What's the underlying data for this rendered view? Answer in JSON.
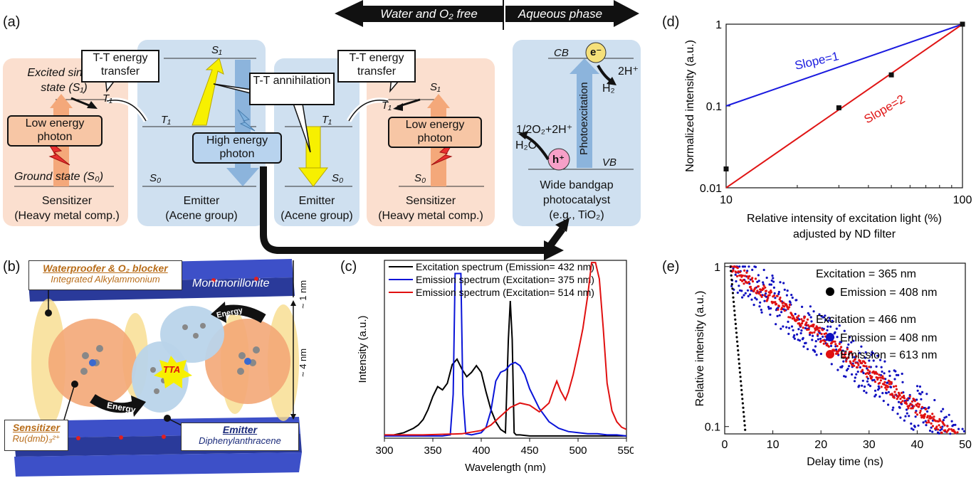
{
  "panels": {
    "a": "(a)",
    "b": "(b)",
    "c": "(c)",
    "d": "(d)",
    "e": "(e)"
  },
  "panel_a": {
    "arrow_left": "Water and O₂ free",
    "arrow_right": "Aqueous phase",
    "excited_singlet": "Excited singlet",
    "state_s1": "state (S₁)",
    "ground_state": "Ground state (S₀)",
    "low_energy_photon": "Low energy photon",
    "tt_energy_transfer": "T-T energy transfer",
    "tt_annihilation": "T-T annihilation",
    "high_energy_photon": "High energy photon",
    "sensitizer": "Sensitizer",
    "heavy_metal": "(Heavy metal comp.)",
    "emitter": "Emitter",
    "acene": "(Acene group)",
    "wide_bandgap": "Wide bandgap",
    "photocatalyst": "photocatalyst",
    "eg_tio2": "(e.g., TiO₂)",
    "s1": "S₁",
    "t1": "T₁",
    "s0": "S₀",
    "cb": "CB",
    "vb": "VB",
    "electron": "e⁻",
    "hole": "h⁺",
    "h2_plus": "2H⁺",
    "h2": "H₂",
    "o2_reaction": "1/2O₂+2H⁺",
    "h2o": "H₂O",
    "photoexcitation": "Photoexcitation"
  },
  "panel_b": {
    "waterproofer": "Waterproofer & O₂ blocker",
    "alkylammonium": "Integrated Alkylammonium",
    "montmorillonite": "Montmorillonite",
    "one_nm": "~ 1 nm",
    "four_nm": "~ 4 nm",
    "energy_top": "Energy",
    "energy_bottom": "Energy",
    "tta": "TTA",
    "sensitizer": "Sensitizer",
    "ru_complex": "Ru(dmb)₃²⁺",
    "emitter": "Emitter",
    "dpa": "Diphenylanthracene"
  },
  "chart_data": [
    {
      "id": "c",
      "type": "line",
      "xlabel": "Wavelength (nm)",
      "ylabel": "Intensity (a.u.)",
      "xlim": [
        300,
        550
      ],
      "x_ticks": [
        "300",
        "350",
        "400",
        "450",
        "500",
        "550"
      ],
      "legend": "top-right",
      "series": [
        {
          "name": "Excitation spectrum (Emission= 432 nm)",
          "color": "#000000",
          "x": [
            300,
            310,
            320,
            330,
            335,
            340,
            345,
            350,
            355,
            360,
            365,
            370,
            375,
            380,
            385,
            390,
            395,
            400,
            405,
            410,
            415,
            420,
            425,
            428,
            430,
            432,
            434,
            436,
            440,
            450,
            460,
            480,
            500,
            520,
            540,
            550
          ],
          "y": [
            0.02,
            0.03,
            0.05,
            0.09,
            0.12,
            0.17,
            0.26,
            0.38,
            0.47,
            0.44,
            0.5,
            0.67,
            0.72,
            0.63,
            0.56,
            0.6,
            0.66,
            0.6,
            0.42,
            0.26,
            0.15,
            0.08,
            0.05,
            0.9,
            1.25,
            0.9,
            0.05,
            0.03,
            0.03,
            0.02,
            0.02,
            0.02,
            0.02,
            0.02,
            0.02,
            0.02
          ]
        },
        {
          "name": "Emission spectrum  (Excitation= 375 nm)",
          "color": "#0a14d8",
          "x": [
            300,
            340,
            360,
            368,
            371,
            373,
            375,
            377,
            379,
            381,
            384,
            390,
            400,
            405,
            410,
            415,
            420,
            425,
            430,
            435,
            440,
            445,
            450,
            460,
            470,
            480,
            490,
            500,
            510,
            520,
            530,
            540,
            550
          ],
          "y": [
            0.02,
            0.02,
            0.02,
            0.03,
            0.4,
            1.5,
            1.5,
            1.5,
            1.5,
            0.4,
            0.04,
            0.03,
            0.05,
            0.1,
            0.25,
            0.52,
            0.6,
            0.62,
            0.67,
            0.69,
            0.66,
            0.58,
            0.45,
            0.27,
            0.15,
            0.09,
            0.06,
            0.05,
            0.04,
            0.04,
            0.03,
            0.03,
            0.02
          ]
        },
        {
          "name": "Emission spectrum  (Excitation= 514 nm)",
          "color": "#e01010",
          "x": [
            300,
            340,
            380,
            400,
            410,
            420,
            430,
            440,
            450,
            460,
            470,
            475,
            478,
            482,
            487,
            490,
            495,
            500,
            505,
            510,
            514,
            518,
            522,
            526,
            530,
            535,
            540,
            545,
            550
          ],
          "y": [
            0.03,
            0.03,
            0.04,
            0.07,
            0.12,
            0.2,
            0.28,
            0.32,
            0.3,
            0.24,
            0.32,
            0.45,
            0.52,
            0.43,
            0.35,
            0.42,
            0.58,
            0.78,
            1.0,
            1.3,
            1.6,
            1.6,
            1.45,
            1.0,
            0.5,
            0.25,
            0.15,
            0.1,
            0.08
          ]
        }
      ]
    },
    {
      "id": "d",
      "type": "scatter",
      "xscale": "log",
      "yscale": "log",
      "xlabel": "Relative intensity of excitation light (%)",
      "xlabel2": "adjusted by ND filter",
      "ylabel": "Normalized intensity (a.u.)",
      "xlim": [
        10,
        100
      ],
      "ylim": [
        0.01,
        1
      ],
      "x_ticks": [
        "10",
        "100"
      ],
      "y_ticks": [
        "0.01",
        "0.1",
        "1"
      ],
      "points": {
        "x": [
          10,
          30,
          50,
          100
        ],
        "y": [
          0.017,
          0.095,
          0.24,
          1.0
        ]
      },
      "lines": [
        {
          "label": "Slope=1",
          "color": "#1a1adf",
          "x": [
            10,
            100
          ],
          "y": [
            0.1,
            1
          ]
        },
        {
          "label": "Slope=2",
          "color": "#e01515",
          "x": [
            10,
            100
          ],
          "y": [
            0.01,
            1
          ]
        }
      ]
    },
    {
      "id": "e",
      "type": "scatter",
      "yscale": "log",
      "xlabel": "Delay time (ns)",
      "ylabel": "Relative intensity (a.u.)",
      "xlim": [
        0,
        50
      ],
      "ylim": [
        0.09,
        1.05
      ],
      "x_ticks": [
        "0",
        "10",
        "20",
        "30",
        "40",
        "50"
      ],
      "y_ticks": [
        "0.1",
        "1"
      ],
      "legend": [
        {
          "header": "Excitation = 365 nm",
          "label": "Emission = 408 nm",
          "color": "#000000"
        },
        {
          "header": "Excitation = 466 nm",
          "label": "Emission = 408 nm",
          "color": "#1010c0"
        },
        {
          "header": "",
          "label": "Emission = 613 nm",
          "color": "#e01010"
        }
      ],
      "series": [
        {
          "name": "Excitation = 365 nm, Emission = 408 nm",
          "color": "#000000",
          "decay_tau_ns": 1.3,
          "x_range": [
            1.2,
            4.5
          ]
        },
        {
          "name": "Excitation = 466 nm, Emission = 408 nm",
          "color": "#1010c0",
          "decay_tau_ns": 19,
          "x_range": [
            1.2,
            50
          ]
        },
        {
          "name": "Excitation = 466 nm, Emission = 613 nm",
          "color": "#e01010",
          "decay_tau_ns": 19,
          "x_range": [
            1.2,
            50
          ]
        }
      ]
    }
  ]
}
